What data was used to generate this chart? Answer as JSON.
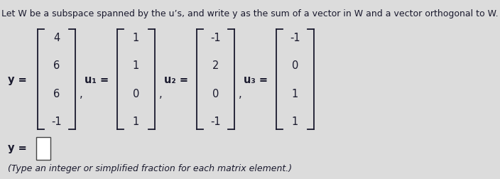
{
  "title": "Let W be a subspace spanned by the u’s, and write y as the sum of a vector in W and a vector orthogonal to W.",
  "bg_color": "#dcdcdc",
  "y_vec": [
    "4",
    "6",
    "6",
    "-1"
  ],
  "u1_vec": [
    "1",
    "1",
    "0",
    "1"
  ],
  "u2_vec": [
    "-1",
    "2",
    "0",
    "-1"
  ],
  "u3_vec": [
    "-1",
    "0",
    "1",
    "1"
  ],
  "y_label": "y =",
  "u1_label": "u₁ =",
  "u2_label": "u₂ =",
  "u3_label": "u₃ =",
  "bottom_label": "y =",
  "bottom_note": "(Type an integer or simplified fraction for each matrix element.)",
  "text_color": "#1a1a2e",
  "bracket_color": "#1a1a2e",
  "title_fontsize": 9.0,
  "label_fontsize": 10.5,
  "vec_fontsize": 10.5,
  "note_fontsize": 9.0
}
